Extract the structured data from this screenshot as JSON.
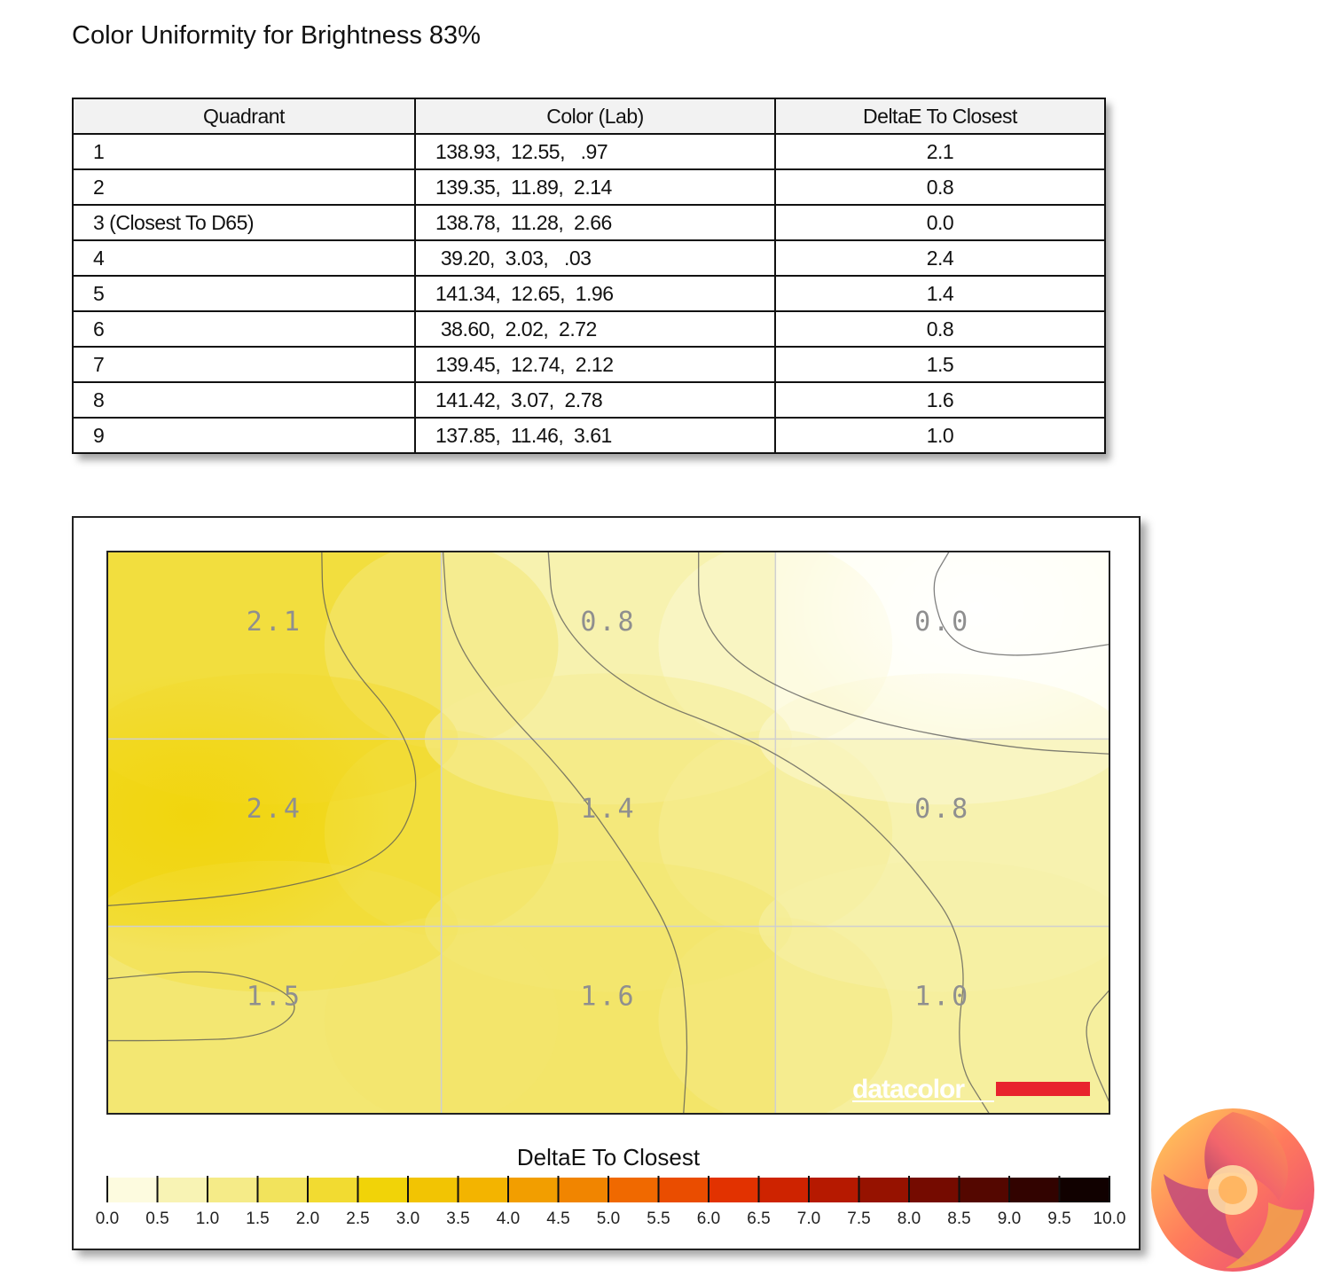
{
  "page_title": "Color Uniformity for Brightness 83%",
  "table": {
    "headers": [
      "Quadrant",
      "Color (Lab)",
      "DeltaE To Closest"
    ],
    "rows": [
      {
        "quadrant": "1",
        "lab": "138.93,  12.55,   .97",
        "delta": "2.1"
      },
      {
        "quadrant": "2",
        "lab": "139.35,  11.89,  2.14",
        "delta": "0.8"
      },
      {
        "quadrant": "3 (Closest To D65)",
        "lab": "138.78,  11.28,  2.66",
        "delta": "0.0"
      },
      {
        "quadrant": "4",
        "lab": " 39.20,  3.03,   .03",
        "delta": "2.4"
      },
      {
        "quadrant": "5",
        "lab": "141.34,  12.65,  1.96",
        "delta": "1.4"
      },
      {
        "quadrant": "6",
        "lab": " 38.60,  2.02,  2.72",
        "delta": "0.8"
      },
      {
        "quadrant": "7",
        "lab": "139.45,  12.74,  2.12",
        "delta": "1.5"
      },
      {
        "quadrant": "8",
        "lab": "141.42,  3.07,  2.78",
        "delta": "1.6"
      },
      {
        "quadrant": "9",
        "lab": "137.85,  11.46,  3.61",
        "delta": "1.0"
      }
    ]
  },
  "chart_data": {
    "type": "heatmap",
    "rows": 3,
    "cols": 3,
    "values": [
      [
        2.1,
        0.8,
        0.0
      ],
      [
        2.4,
        1.4,
        0.8
      ],
      [
        1.5,
        1.6,
        1.0
      ]
    ],
    "labels": [
      [
        "2.1",
        "0.8",
        "0.0"
      ],
      [
        "2.4",
        "1.4",
        "0.8"
      ],
      [
        "1.5",
        "1.6",
        "1.0"
      ]
    ],
    "legend_title": "DeltaE To Closest",
    "scale_min": 0,
    "scale_max": 10,
    "scale_step": 0.5,
    "scale_ticks": [
      "0.0",
      "0.5",
      "1.0",
      "1.5",
      "2.0",
      "2.5",
      "3.0",
      "3.5",
      "4.0",
      "4.5",
      "5.0",
      "5.5",
      "6.0",
      "6.5",
      "7.0",
      "7.5",
      "8.0",
      "8.5",
      "9.0",
      "9.5",
      "10.0"
    ],
    "color_stops": [
      "#fffff4",
      "#f6f0a6",
      "#f2e256",
      "#f1d408",
      "#f3b900",
      "#f29100",
      "#ef5d00",
      "#e02c00",
      "#b51800",
      "#7a0c00",
      "#3d0400",
      "#000000"
    ],
    "grid": true,
    "contours": true
  },
  "watermark": {
    "text": "datacolor",
    "bar_color": "#e8232d"
  },
  "logo": {
    "name": "kitguru-logo"
  }
}
